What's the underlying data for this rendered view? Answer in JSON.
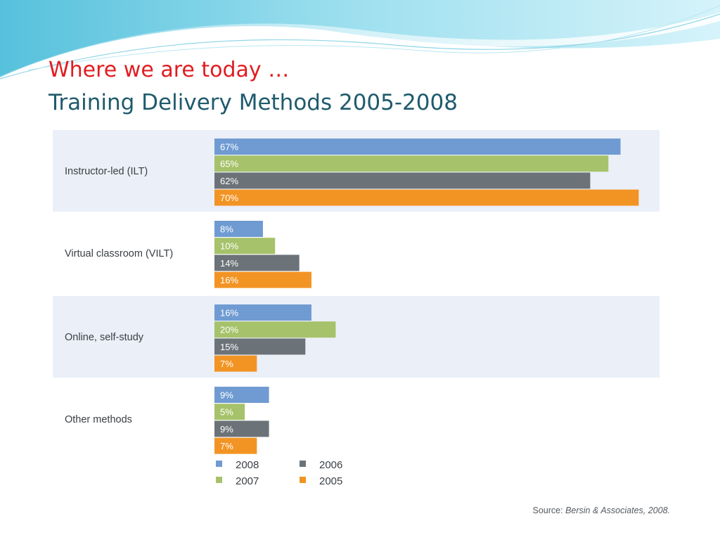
{
  "slide": {
    "heading": "Where we are today …",
    "subheading": "Training Delivery Methods 2005-2008"
  },
  "chart_data": {
    "type": "bar",
    "orientation": "horizontal",
    "title": "",
    "categories": [
      "Instructor-led (ILT)",
      "Virtual classroom (VILT)",
      "Online, self-study",
      "Other methods"
    ],
    "series": [
      {
        "name": "2008",
        "color": "#6f9bd2",
        "values": [
          67,
          8,
          16,
          9
        ],
        "labels": [
          "67%",
          "8%",
          "16%",
          "9%"
        ]
      },
      {
        "name": "2007",
        "color": "#a6c26a",
        "values": [
          65,
          10,
          20,
          5
        ],
        "labels": [
          "65%",
          "10%",
          "20%",
          "5%"
        ]
      },
      {
        "name": "2006",
        "color": "#6b7378",
        "values": [
          62,
          14,
          15,
          9
        ],
        "labels": [
          "62%",
          "14%",
          "15%",
          "9%"
        ]
      },
      {
        "name": "2005",
        "color": "#f29424",
        "values": [
          70,
          16,
          7,
          7
        ],
        "labels": [
          "70%",
          "16%",
          "7%",
          "7%"
        ]
      }
    ],
    "legend_position": "bottom",
    "band_color": "#ebeff8",
    "grid": false,
    "source": {
      "prefix": "Source: ",
      "text": "Bersin & Associates, 2008."
    }
  }
}
